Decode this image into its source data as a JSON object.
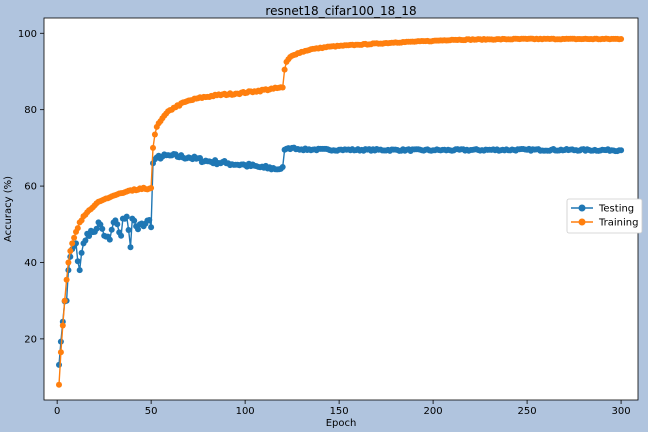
{
  "chart_data": {
    "type": "line",
    "title": "resnet18_cifar100_18_18",
    "xlabel": "Epoch",
    "ylabel": "Accuracy (%)",
    "xlim": [
      -7,
      309
    ],
    "ylim": [
      4,
      104
    ],
    "xticks": [
      0,
      50,
      100,
      150,
      200,
      250,
      300
    ],
    "yticks": [
      20,
      40,
      60,
      80,
      100
    ],
    "grid": false,
    "legend": "center-right",
    "series": [
      {
        "name": "Testing",
        "color": "#1f77b4",
        "marker": "circle",
        "keypoints": [
          [
            1,
            13.2
          ],
          [
            2,
            19.3
          ],
          [
            3,
            24.5
          ],
          [
            4,
            29.8
          ],
          [
            5,
            30
          ],
          [
            6,
            38
          ],
          [
            7,
            41.5
          ],
          [
            8,
            43.5
          ],
          [
            9,
            44.3
          ],
          [
            10,
            45
          ],
          [
            12,
            38
          ],
          [
            14,
            45
          ],
          [
            16,
            47.5
          ],
          [
            20,
            48
          ],
          [
            22,
            50.5
          ],
          [
            25,
            47
          ],
          [
            28,
            46
          ],
          [
            30,
            50.5
          ],
          [
            32,
            50
          ],
          [
            34,
            47
          ],
          [
            35,
            51.5
          ],
          [
            37,
            52
          ],
          [
            39,
            44
          ],
          [
            40,
            51.5
          ],
          [
            42,
            49.5
          ],
          [
            44,
            50
          ],
          [
            46,
            49.5
          ],
          [
            48,
            51
          ],
          [
            50,
            49.2
          ],
          [
            51,
            66
          ],
          [
            52,
            67
          ],
          [
            53,
            67.5
          ],
          [
            60,
            68
          ],
          [
            70,
            67.5
          ],
          [
            80,
            66.5
          ],
          [
            90,
            66
          ],
          [
            100,
            65.5
          ],
          [
            110,
            64.8
          ],
          [
            119,
            64.5
          ],
          [
            120,
            65
          ],
          [
            121,
            69.5
          ],
          [
            125,
            70
          ],
          [
            130,
            69.6
          ],
          [
            150,
            69.5
          ],
          [
            200,
            69.4
          ],
          [
            250,
            69.5
          ],
          [
            300,
            69.4
          ]
        ]
      },
      {
        "name": "Training",
        "color": "#ff7f0e",
        "marker": "circle",
        "keypoints": [
          [
            1,
            8
          ],
          [
            2,
            16.5
          ],
          [
            3,
            23.5
          ],
          [
            4,
            30
          ],
          [
            5,
            35.5
          ],
          [
            6,
            40
          ],
          [
            7,
            43
          ],
          [
            8,
            45
          ],
          [
            9,
            46.5
          ],
          [
            10,
            48
          ],
          [
            12,
            50.5
          ],
          [
            15,
            52.5
          ],
          [
            18,
            54
          ],
          [
            20,
            55
          ],
          [
            25,
            56.5
          ],
          [
            30,
            57.5
          ],
          [
            35,
            58.2
          ],
          [
            40,
            58.8
          ],
          [
            45,
            59.2
          ],
          [
            50,
            59.5
          ],
          [
            51,
            70
          ],
          [
            52,
            73.5
          ],
          [
            53,
            75.5
          ],
          [
            55,
            77
          ],
          [
            58,
            79
          ],
          [
            62,
            80.5
          ],
          [
            68,
            82
          ],
          [
            75,
            83
          ],
          [
            85,
            83.8
          ],
          [
            95,
            84.2
          ],
          [
            105,
            84.8
          ],
          [
            115,
            85.5
          ],
          [
            120,
            85.8
          ],
          [
            121,
            90.5
          ],
          [
            122,
            92.5
          ],
          [
            124,
            93.8
          ],
          [
            128,
            94.8
          ],
          [
            135,
            95.8
          ],
          [
            145,
            96.5
          ],
          [
            160,
            97
          ],
          [
            180,
            97.6
          ],
          [
            200,
            98
          ],
          [
            210,
            98.3
          ],
          [
            230,
            98.4
          ],
          [
            250,
            98.5
          ],
          [
            270,
            98.5
          ],
          [
            300,
            98.5
          ]
        ]
      }
    ]
  }
}
